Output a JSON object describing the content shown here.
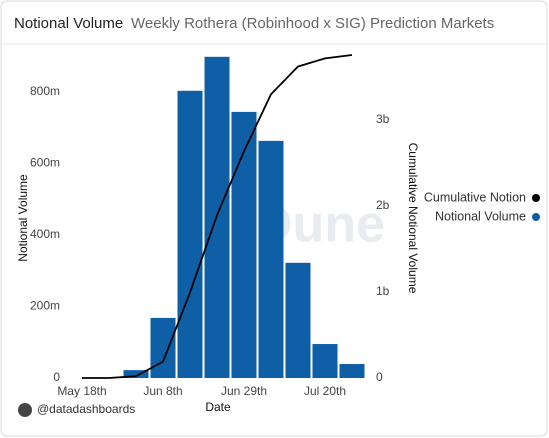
{
  "chart_data": {
    "type": "bar",
    "title": "Notional Volume",
    "subtitle": "Weekly Rothera (Robinhood x SIG) Prediction Markets",
    "x_label": "Date",
    "y_label": "Notional Volume",
    "y2_label": "Cumulative Notional Volume",
    "watermark": "Dune",
    "credit": "@datadashboards",
    "categories": [
      "May 18th",
      null,
      null,
      "Jun 8th",
      null,
      null,
      "Jun 29th",
      null,
      null,
      "Jul 20th",
      null
    ],
    "series": [
      {
        "name": "Cumulative Notion",
        "type": "line",
        "axis": "y2",
        "color": "#000000",
        "values": [
          0,
          0,
          22000000,
          190000000,
          993000000,
          1891000000,
          2635000000,
          3298000000,
          3620000000,
          3715000000,
          3754000000
        ]
      },
      {
        "name": "Notional Volume",
        "type": "bar",
        "color": "#0f5fa6",
        "values": [
          0,
          0,
          22000000,
          168000000,
          803000000,
          898000000,
          744000000,
          663000000,
          322000000,
          95000000,
          39000000
        ]
      }
    ],
    "ylim": [
      0,
      931000000
    ],
    "yticks": [
      0,
      {
        "value": 200000000,
        "label": "200m"
      },
      {
        "value": 400000000,
        "label": "400m"
      },
      {
        "value": 600000000,
        "label": "600m"
      },
      {
        "value": 800000000,
        "label": "800m"
      }
    ],
    "y2lim": [
      0,
      3870000000
    ],
    "y2ticks": [
      0,
      {
        "value": 1000000000,
        "label": "1b"
      },
      {
        "value": 2000000000,
        "label": "2b"
      },
      {
        "value": 3000000000,
        "label": "3b"
      }
    ],
    "grid": false
  }
}
